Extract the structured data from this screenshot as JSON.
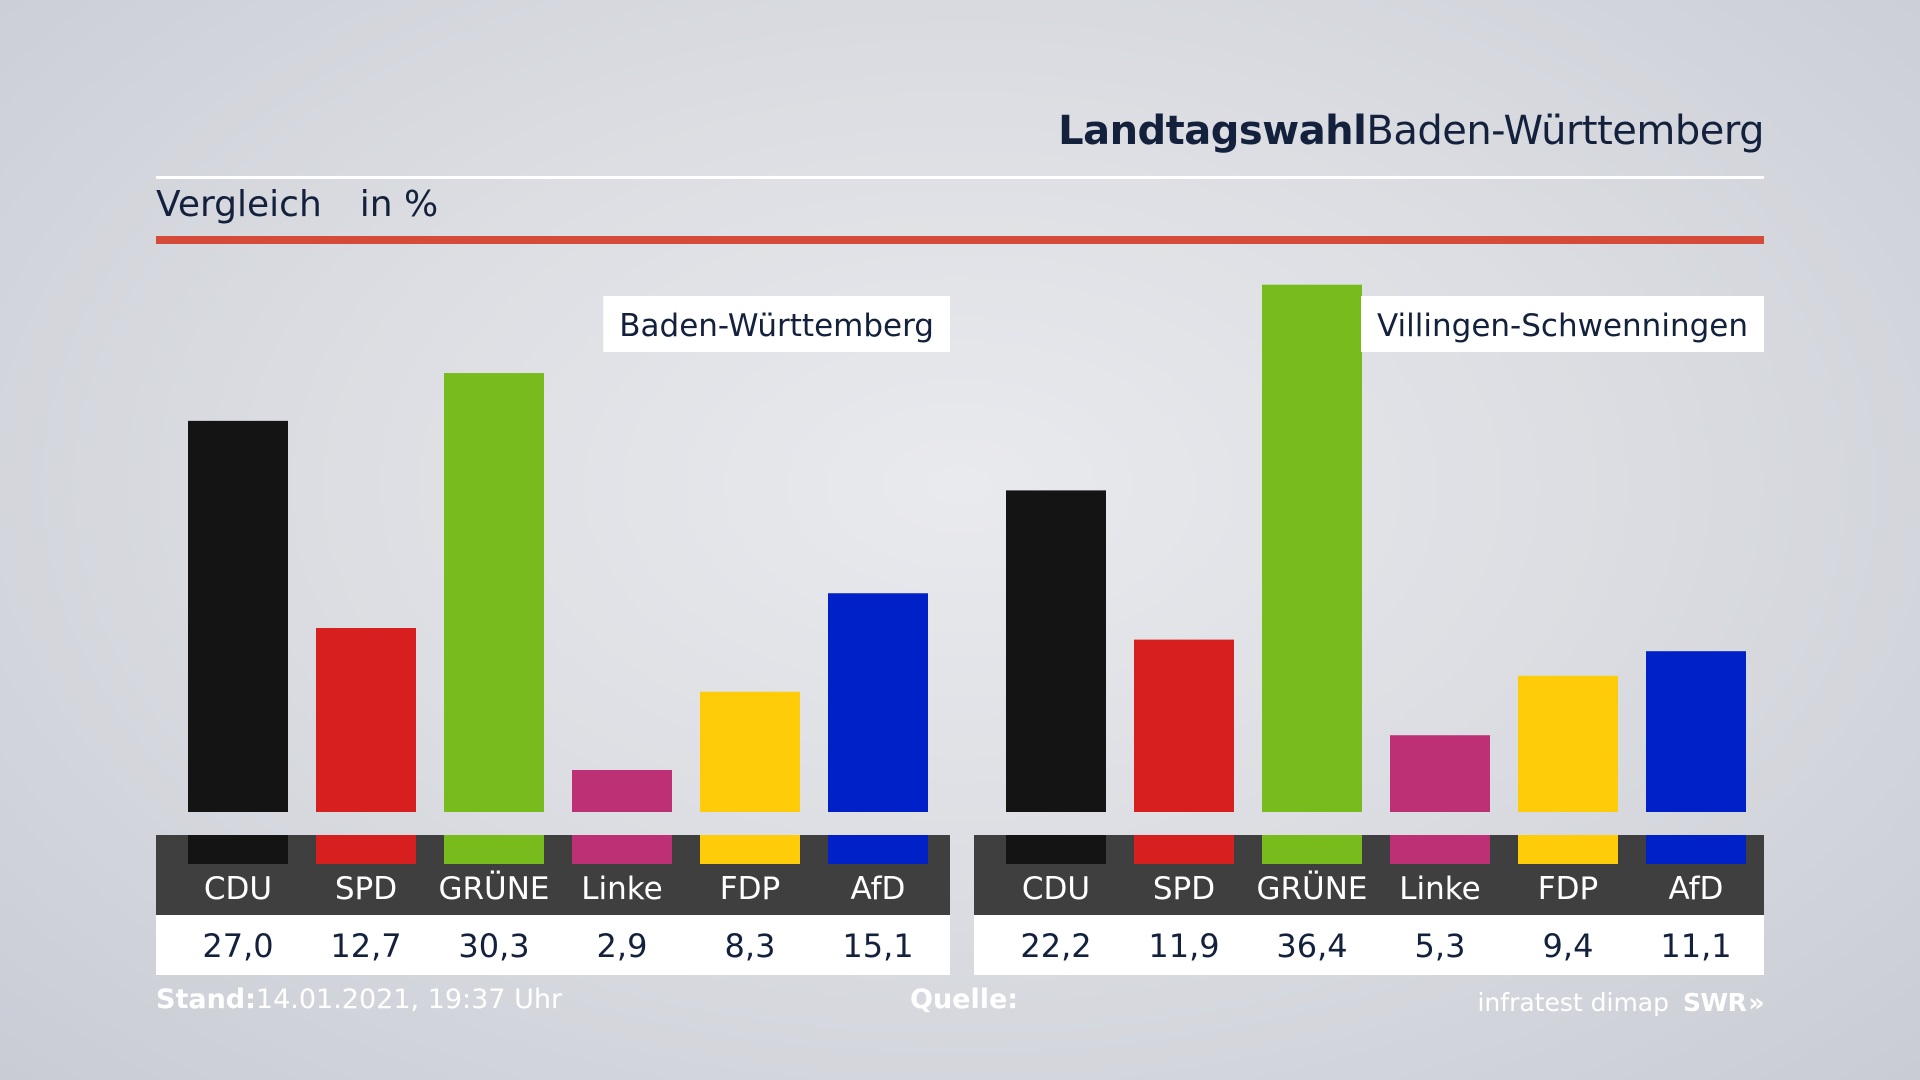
{
  "header": {
    "title_bold": "Landtagswahl",
    "title_rest": "Baden-Württemberg",
    "subtitle": "Vergleich",
    "unit": "in %"
  },
  "footer": {
    "stand_label": "Stand:",
    "stand_value": "14.01.2021, 19:37 Uhr",
    "quelle_label": "Quelle:",
    "source": "infratest dimap",
    "brand": "SWR",
    "brand_arrows": "»"
  },
  "colors": {
    "CDU": "#141414",
    "SPD": "#d71f1f",
    "GRÜNE": "#77bc1c",
    "Linke": "#be3075",
    "FDP": "#ffcc0a",
    "AfD": "#0021c8",
    "label_band": "#3f3f3f",
    "accent_rule": "#d64a39"
  },
  "chart_data": [
    {
      "type": "bar",
      "title": "Baden-Württemberg",
      "categories": [
        "CDU",
        "SPD",
        "GRÜNE",
        "Linke",
        "FDP",
        "AfD"
      ],
      "values": [
        27.0,
        12.7,
        30.3,
        2.9,
        8.3,
        15.1
      ],
      "value_labels": [
        "27,0",
        "12,7",
        "30,3",
        "2,9",
        "8,3",
        "15,1"
      ],
      "ylim": [
        0,
        37
      ]
    },
    {
      "type": "bar",
      "title": "Villingen-Schwenningen",
      "categories": [
        "CDU",
        "SPD",
        "GRÜNE",
        "Linke",
        "FDP",
        "AfD"
      ],
      "values": [
        22.2,
        11.9,
        36.4,
        5.3,
        9.4,
        11.1
      ],
      "value_labels": [
        "22,2",
        "11,9",
        "36,4",
        "5,3",
        "9,4",
        "11,1"
      ],
      "ylim": [
        0,
        37
      ]
    }
  ]
}
